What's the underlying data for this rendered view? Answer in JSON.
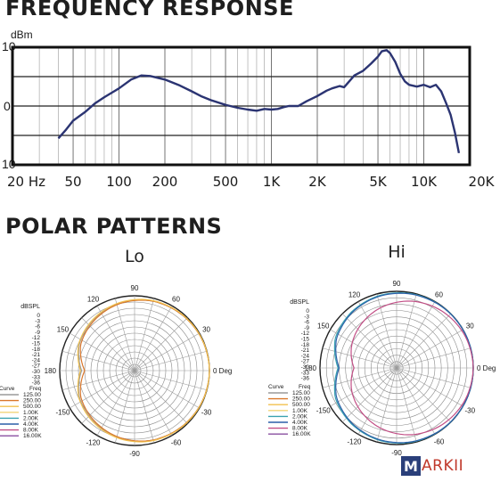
{
  "freq_title": "FREQUENCY RESPONSE",
  "polar_title": "POLAR PATTERNS",
  "logo": {
    "letter": "M",
    "text": "ARKII"
  },
  "chart_data": [
    {
      "type": "line",
      "title": "FREQUENCY RESPONSE",
      "ylabel": "dBm",
      "xscale": "log",
      "xlim": [
        20,
        20000
      ],
      "ylim": [
        -10,
        10
      ],
      "grid": true,
      "x_tick_labels": [
        "20 Hz",
        "50",
        "100",
        "200",
        "500",
        "1K",
        "2K",
        "5K",
        "10K",
        "20K"
      ],
      "x_ticks": [
        20,
        50,
        100,
        200,
        500,
        1000,
        2000,
        5000,
        10000,
        20000
      ],
      "y_tick_labels": [
        "10",
        "0",
        "10"
      ],
      "y_ticks": [
        10,
        0,
        -10
      ],
      "color": "#2b3472",
      "x": [
        40,
        45,
        50,
        60,
        70,
        80,
        100,
        120,
        140,
        160,
        200,
        250,
        300,
        350,
        400,
        500,
        600,
        700,
        800,
        900,
        1000,
        1100,
        1200,
        1300,
        1500,
        1700,
        2000,
        2300,
        2500,
        2800,
        3000,
        3500,
        4000,
        4500,
        5000,
        5300,
        5700,
        6000,
        6500,
        7000,
        7500,
        8000,
        9000,
        10000,
        11000,
        12000,
        13000,
        14000,
        15000,
        16000,
        17000
      ],
      "y": [
        -5.5,
        -4,
        -2.5,
        -1,
        0.5,
        1.5,
        3,
        4.5,
        5.2,
        5.1,
        4.5,
        3.5,
        2.5,
        1.6,
        1,
        0.2,
        -0.3,
        -0.6,
        -0.8,
        -0.5,
        -0.6,
        -0.5,
        -0.2,
        0,
        0,
        0.8,
        1.7,
        2.6,
        3,
        3.4,
        3.2,
        5.2,
        6,
        7.2,
        8.4,
        9.3,
        9.5,
        9,
        7.5,
        5.5,
        4.2,
        3.6,
        3.3,
        3.6,
        3.2,
        3.6,
        2.5,
        0.5,
        -1.5,
        -4.5,
        -8
      ]
    },
    {
      "type": "polar",
      "title": "Lo",
      "r_label": "dBSPL",
      "r_tick_labels": [
        "0",
        "-3",
        "-6",
        "-9",
        "-12",
        "-15",
        "-18",
        "-21",
        "-24",
        "-27",
        "-30",
        "-33",
        "-36"
      ],
      "angle_labels": [
        "0 Deg",
        "30",
        "60",
        "90",
        "120",
        "150",
        "180",
        "-150",
        "-120",
        "-90",
        "-60",
        "-30"
      ],
      "legend_header": [
        "Curve",
        "Freq"
      ],
      "series": [
        {
          "name": "125.00",
          "color": "#9a9a9a",
          "level_db": [
            0,
            -0.3,
            -0.8,
            -1.5,
            -2.8,
            -4.5,
            -6.5,
            -10.5,
            -6.5,
            -4.5,
            -2.8,
            -1.5,
            -0.8,
            -0.3
          ]
        },
        {
          "name": "250.00",
          "color": "#d9772b",
          "level_db": [
            0,
            -0.3,
            -0.8,
            -1.5,
            -3.0,
            -5.0,
            -7.2,
            -12.0,
            -7.2,
            -5.0,
            -3.0,
            -1.5,
            -0.8,
            -0.3
          ]
        },
        {
          "name": "500.00",
          "color": "#f2c14e",
          "level_db": [
            0,
            -0.2,
            -0.6,
            -1.2,
            -2.5,
            -4.2,
            -6.2,
            -10.0,
            -6.2,
            -4.2,
            -2.5,
            -1.2,
            -0.6,
            -0.2
          ]
        },
        {
          "name": "1.00K",
          "color": "#f0d478",
          "level_db": null
        },
        {
          "name": "2.00K",
          "color": "#3aa2b0",
          "level_db": null
        },
        {
          "name": "4.00K",
          "color": "#2b5fa8",
          "level_db": null
        },
        {
          "name": "8.00K",
          "color": "#c24f86",
          "level_db": null
        },
        {
          "name": "16.00K",
          "color": "#8a4fa0",
          "level_db": null
        }
      ]
    },
    {
      "type": "polar",
      "title": "Hi",
      "r_label": "dBSPL",
      "r_tick_labels": [
        "0",
        "-3",
        "-6",
        "-9",
        "-12",
        "-15",
        "-18",
        "-21",
        "-24",
        "-27",
        "-30",
        "-33",
        "-36"
      ],
      "angle_labels": [
        "0 Deg",
        "30",
        "60",
        "90",
        "120",
        "150",
        "180",
        "-150",
        "-120",
        "-90",
        "-60",
        "-30"
      ],
      "legend_header": [
        "Curve",
        "Freq"
      ],
      "series": [
        {
          "name": "125.00",
          "color": "#9a9a9a",
          "level_db": null
        },
        {
          "name": "250.00",
          "color": "#d9772b",
          "level_db": null
        },
        {
          "name": "500.00",
          "color": "#f2c14e",
          "level_db": null
        },
        {
          "name": "1.00K",
          "color": "#f0d478",
          "level_db": null
        },
        {
          "name": "2.00K",
          "color": "#3aa2b0",
          "level_db": [
            0,
            0,
            -0.1,
            -0.4,
            -1.0,
            -2.2,
            -4.0,
            -8.5,
            -4.0,
            -2.2,
            -1.0,
            -0.4,
            -0.1,
            0
          ]
        },
        {
          "name": "4.00K",
          "color": "#2b5fa8",
          "level_db": [
            0,
            0,
            -0.2,
            -0.6,
            -1.3,
            -2.6,
            -4.6,
            -9.0,
            -4.6,
            -2.6,
            -1.3,
            -0.6,
            -0.2,
            0
          ]
        },
        {
          "name": "8.00K",
          "color": "#c24f86",
          "level_db": [
            0,
            -0.5,
            -1.8,
            -3.8,
            -6.5,
            -9.5,
            -12.5,
            -16.0,
            -12.5,
            -9.5,
            -6.5,
            -3.8,
            -1.8,
            -0.5
          ]
        },
        {
          "name": "16.00K",
          "color": "#8a4fa0",
          "level_db": null
        }
      ]
    }
  ]
}
